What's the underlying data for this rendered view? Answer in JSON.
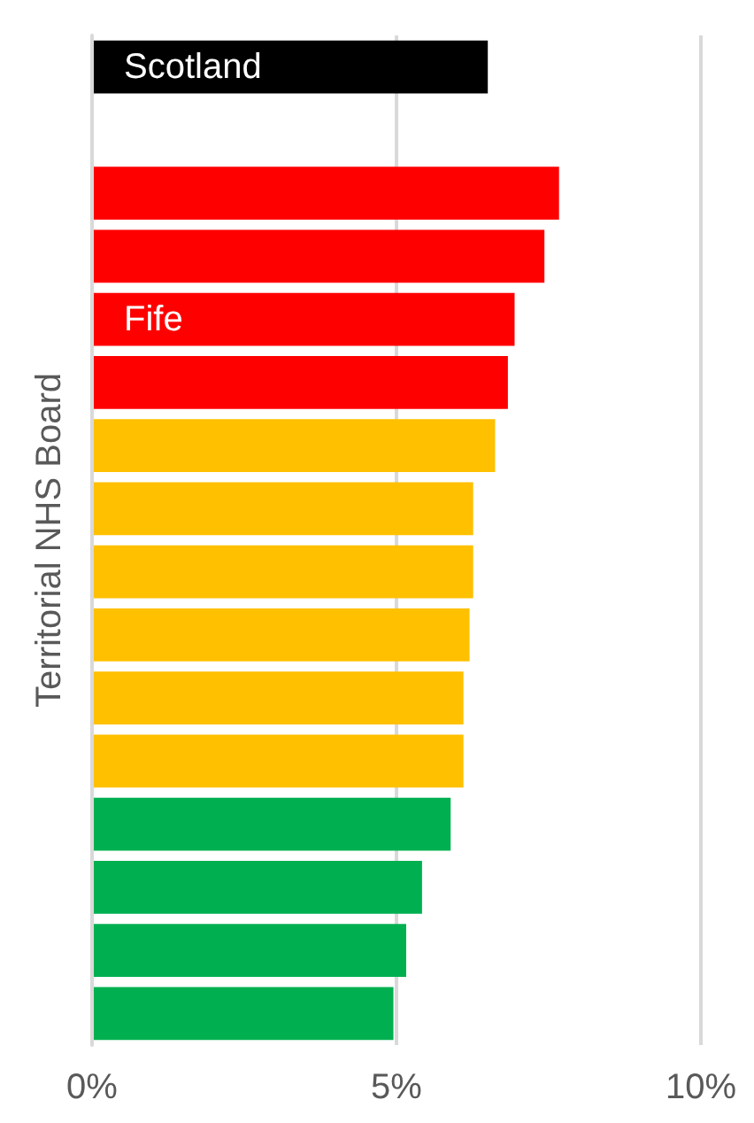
{
  "chart_data": {
    "type": "bar",
    "orientation": "horizontal",
    "ylabel": "Territorial NHS Board",
    "categories": [
      "Scotland",
      null,
      null,
      null,
      "Fife",
      null,
      null,
      null,
      null,
      null,
      null,
      null,
      null,
      null,
      null,
      null
    ],
    "values": [
      6.5,
      null,
      7.67,
      7.43,
      6.94,
      6.83,
      6.62,
      6.26,
      6.26,
      6.2,
      6.1,
      6.1,
      5.89,
      5.42,
      5.16,
      4.95
    ],
    "colors": [
      "#000000",
      "#ffffff",
      "#ff0000",
      "#ff0000",
      "#ff0000",
      "#ff0000",
      "#ffc000",
      "#ffc000",
      "#ffc000",
      "#ffc000",
      "#ffc000",
      "#ffc000",
      "#00b050",
      "#00b050",
      "#00b050",
      "#00b050"
    ],
    "xlim": [
      0,
      10
    ],
    "xticks": [
      {
        "value": 0,
        "label": "0%"
      },
      {
        "value": 5,
        "label": "5%"
      },
      {
        "value": 10,
        "label": "10%"
      }
    ],
    "grid": "x"
  }
}
